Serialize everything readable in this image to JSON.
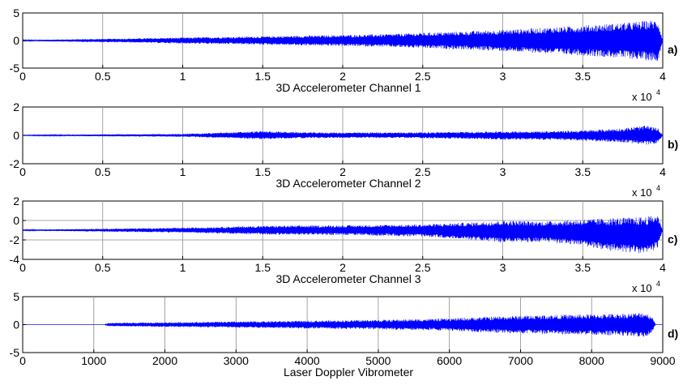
{
  "chart_data": [
    {
      "type": "line",
      "panel_label": "a)",
      "xlabel": "3D Accelerometer Channel 1",
      "xlim": [
        0,
        40000
      ],
      "ylim": [
        -5,
        5
      ],
      "xticks": [
        0,
        5000,
        10000,
        15000,
        20000,
        25000,
        30000,
        35000,
        40000
      ],
      "xtick_labels": [
        "0",
        "0.5",
        "1",
        "1.5",
        "2",
        "2.5",
        "3",
        "3.5",
        "4"
      ],
      "yticks": [
        -5,
        0,
        5
      ],
      "ytick_labels": [
        "-5",
        "0",
        "5"
      ],
      "x_multiplier": {
        "base": "x 10",
        "exponent": "4"
      },
      "grid": true,
      "color": "#0000ff",
      "envelope": {
        "x": [
          0,
          2500,
          5000,
          7500,
          10000,
          12500,
          15000,
          17500,
          20000,
          22500,
          25000,
          27500,
          30000,
          32500,
          35000,
          37500,
          39000,
          39700,
          40000
        ],
        "upper": [
          0.1,
          0.2,
          0.3,
          0.4,
          0.55,
          0.65,
          0.75,
          0.9,
          1.0,
          1.15,
          1.4,
          1.65,
          1.95,
          2.3,
          2.75,
          3.2,
          3.6,
          3.8,
          0
        ],
        "lower": [
          -0.1,
          -0.2,
          -0.3,
          -0.4,
          -0.55,
          -0.65,
          -0.75,
          -0.9,
          -1.0,
          -1.15,
          -1.4,
          -1.65,
          -1.95,
          -2.3,
          -2.75,
          -3.2,
          -3.6,
          -3.8,
          0
        ]
      }
    },
    {
      "type": "line",
      "panel_label": "b)",
      "xlabel": "3D Accelerometer Channel 2",
      "xlim": [
        0,
        40000
      ],
      "ylim": [
        -2,
        2
      ],
      "xticks": [
        0,
        5000,
        10000,
        15000,
        20000,
        25000,
        30000,
        35000,
        40000
      ],
      "xtick_labels": [
        "0",
        "0.5",
        "1",
        "1.5",
        "2",
        "2.5",
        "3",
        "3.5",
        "4"
      ],
      "yticks": [
        -2,
        0,
        2
      ],
      "ytick_labels": [
        "-2",
        "0",
        "2"
      ],
      "x_multiplier": {
        "base": "x 10",
        "exponent": "4"
      },
      "grid": true,
      "color": "#0000ff",
      "envelope": {
        "x": [
          0,
          2500,
          5000,
          10000,
          15000,
          17500,
          20000,
          25000,
          30000,
          33000,
          35000,
          37500,
          39000,
          39700,
          40000
        ],
        "upper": [
          0.02,
          0.05,
          0.07,
          0.1,
          0.3,
          0.22,
          0.2,
          0.22,
          0.28,
          0.3,
          0.35,
          0.5,
          0.7,
          0.5,
          0
        ],
        "lower": [
          -0.02,
          -0.05,
          -0.07,
          -0.1,
          -0.28,
          -0.2,
          -0.18,
          -0.2,
          -0.3,
          -0.32,
          -0.38,
          -0.5,
          -0.7,
          -0.55,
          0
        ]
      }
    },
    {
      "type": "line",
      "panel_label": "c)",
      "xlabel": "3D Accelerometer Channel 3",
      "xlim": [
        0,
        40000
      ],
      "ylim": [
        -4,
        2
      ],
      "xticks": [
        0,
        5000,
        10000,
        15000,
        20000,
        25000,
        30000,
        35000,
        40000
      ],
      "xtick_labels": [
        "0",
        "0.5",
        "1",
        "1.5",
        "2",
        "2.5",
        "3",
        "3.5",
        "4"
      ],
      "yticks": [
        -4,
        -2,
        0,
        2
      ],
      "ytick_labels": [
        "-4",
        "-2",
        "0",
        "2"
      ],
      "x_multiplier": {
        "base": "x 10",
        "exponent": "4"
      },
      "grid": true,
      "color": "#0000ff",
      "baseline": -1,
      "envelope": {
        "x": [
          0,
          2500,
          5000,
          10000,
          15000,
          20000,
          25000,
          28000,
          30000,
          32500,
          35000,
          36500,
          38000,
          39000,
          39700,
          40000
        ],
        "upper": [
          -0.95,
          -0.9,
          -0.85,
          -0.75,
          -0.55,
          -0.5,
          -0.4,
          -0.2,
          0.0,
          -0.1,
          0.1,
          0.25,
          0.3,
          0.4,
          0.6,
          -1
        ],
        "lower": [
          -1.05,
          -1.1,
          -1.15,
          -1.25,
          -1.45,
          -1.5,
          -1.65,
          -2.0,
          -2.3,
          -2.2,
          -2.6,
          -3.1,
          -3.3,
          -3.5,
          -2.8,
          -1
        ]
      }
    },
    {
      "type": "line",
      "panel_label": "d)",
      "xlabel": "Laser Doppler Vibrometer",
      "xlim": [
        0,
        9000
      ],
      "ylim": [
        -5,
        5
      ],
      "xticks": [
        0,
        1000,
        2000,
        3000,
        4000,
        5000,
        6000,
        7000,
        8000,
        9000
      ],
      "xtick_labels": [
        "0",
        "1000",
        "2000",
        "3000",
        "4000",
        "5000",
        "6000",
        "7000",
        "8000",
        "9000"
      ],
      "yticks": [
        -5,
        0,
        5
      ],
      "ytick_labels": [
        "-5",
        "0",
        "5"
      ],
      "grid": true,
      "color": "#0000ff",
      "envelope": {
        "x": [
          0,
          1150,
          1200,
          2000,
          3000,
          4000,
          5000,
          6000,
          6500,
          7000,
          7500,
          8000,
          8500,
          8750,
          8850,
          8900
        ],
        "upper": [
          0,
          0,
          0.3,
          0.4,
          0.55,
          0.7,
          0.85,
          1.1,
          1.4,
          1.6,
          1.75,
          1.85,
          2.0,
          2.2,
          1.5,
          0
        ],
        "lower": [
          0,
          0,
          -0.3,
          -0.4,
          -0.55,
          -0.7,
          -0.85,
          -1.1,
          -1.4,
          -1.6,
          -1.75,
          -1.85,
          -2.0,
          -2.2,
          -1.5,
          0
        ]
      }
    }
  ]
}
